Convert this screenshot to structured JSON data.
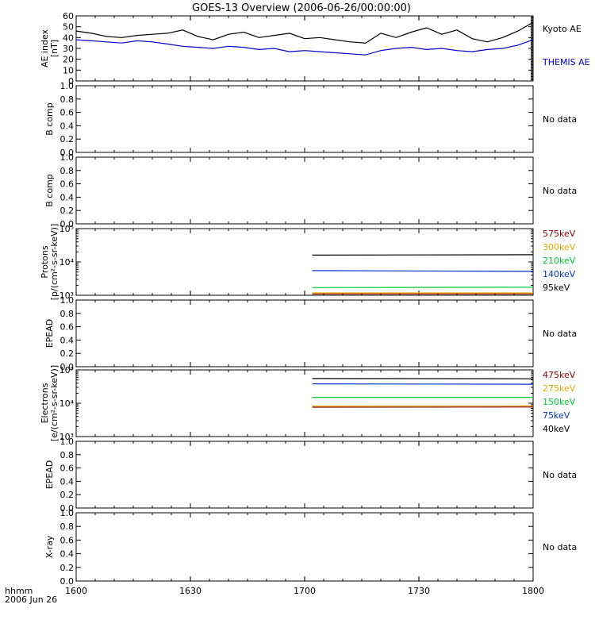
{
  "title": "GOES-13 Overview (2006-06-26/00:00:00)",
  "time_axis": {
    "label_line1": "hhmm",
    "label_line2": "2006 Jun 26",
    "ticks": [
      "1600",
      "1630",
      "1700",
      "1730",
      "1800"
    ]
  },
  "chart_data": [
    {
      "type": "line",
      "ylabel_line1": "AE index",
      "ylabel_line2": "[nT]",
      "ylim": [
        0,
        60
      ],
      "yticks": [
        "0",
        "10",
        "20",
        "30",
        "40",
        "50",
        "60"
      ],
      "series": [
        {
          "name": "Kyoto AE",
          "color": "#000000",
          "x": [
            0,
            4,
            8,
            12,
            16,
            20,
            24,
            28,
            32,
            36,
            40,
            44,
            48,
            52,
            56,
            60,
            64,
            68,
            72,
            76,
            80,
            84,
            88,
            92,
            96,
            100,
            104,
            108,
            112,
            116,
            120
          ],
          "y": [
            46,
            44,
            41,
            40,
            42,
            43,
            44,
            47,
            41,
            38,
            43,
            45,
            40,
            42,
            44,
            39,
            40,
            38,
            36,
            35,
            44,
            40,
            45,
            49,
            43,
            47,
            39,
            36,
            40,
            46,
            54
          ]
        },
        {
          "name": "THEMIS AE",
          "color": "#0000cc",
          "x": [
            0,
            4,
            8,
            12,
            16,
            20,
            24,
            28,
            32,
            36,
            40,
            44,
            48,
            52,
            56,
            60,
            64,
            68,
            72,
            76,
            80,
            84,
            88,
            92,
            96,
            100,
            104,
            108,
            112,
            116,
            120
          ],
          "y": [
            38,
            37,
            36,
            35,
            37,
            36,
            34,
            32,
            31,
            30,
            32,
            31,
            29,
            30,
            27,
            28,
            27,
            26,
            25,
            24,
            28,
            30,
            31,
            29,
            30,
            28,
            27,
            29,
            30,
            33,
            38
          ]
        }
      ],
      "side_label": ""
    },
    {
      "type": "line",
      "ylabel_line1": "B comp",
      "ylabel_line2": "",
      "ylim": [
        0,
        1
      ],
      "yticks": [
        "0.0",
        "0.2",
        "0.4",
        "0.6",
        "0.8",
        "1.0"
      ],
      "series": [],
      "side_label": "No data"
    },
    {
      "type": "line",
      "ylabel_line1": "B comp",
      "ylabel_line2": "",
      "ylim": [
        0,
        1
      ],
      "yticks": [
        "0.0",
        "0.2",
        "0.4",
        "0.6",
        "0.8",
        "1.0"
      ],
      "series": [],
      "side_label": "No data"
    },
    {
      "type": "line",
      "log": true,
      "ylabel_line1": "Protons",
      "ylabel_line2": "[p/(cm²-s-sr-keV)]",
      "ylim": [
        1000,
        100000
      ],
      "yticks": [
        "10³",
        "10⁴",
        "10⁵"
      ],
      "series": [
        {
          "name": "575keV",
          "color": "#8b0000",
          "x": [
            62,
            120
          ],
          "y": [
            1100,
            1100
          ]
        },
        {
          "name": "300keV",
          "color": "#e6a800",
          "x": [
            62,
            120
          ],
          "y": [
            1180,
            1180
          ]
        },
        {
          "name": "210keV",
          "color": "#00cc33",
          "x": [
            62,
            120
          ],
          "y": [
            1700,
            1750
          ]
        },
        {
          "name": "140keV",
          "color": "#0033cc",
          "x": [
            62,
            120
          ],
          "y": [
            5500,
            5200
          ]
        },
        {
          "name": "95keV",
          "color": "#000000",
          "x": [
            62,
            120
          ],
          "y": [
            16000,
            16500
          ]
        }
      ],
      "side_label": ""
    },
    {
      "type": "line",
      "ylabel_line1": "EPEAD",
      "ylabel_line2": "",
      "ylim": [
        0,
        1
      ],
      "yticks": [
        "0.0",
        "0.2",
        "0.4",
        "0.6",
        "0.8",
        "1.0"
      ],
      "series": [],
      "side_label": "No data"
    },
    {
      "type": "line",
      "log": true,
      "ylabel_line1": "Electrons",
      "ylabel_line2": "[e/(cm²-s-sr-keV)]",
      "ylim": [
        1000,
        100000
      ],
      "yticks": [
        "10³",
        "10⁴",
        "10⁵"
      ],
      "series": [
        {
          "name": "475keV",
          "color": "#8b0000",
          "x": [
            62,
            120
          ],
          "y": [
            7600,
            7700
          ]
        },
        {
          "name": "275keV",
          "color": "#e6a800",
          "x": [
            62,
            120
          ],
          "y": [
            8200,
            8300
          ]
        },
        {
          "name": "150keV",
          "color": "#00cc33",
          "x": [
            62,
            120
          ],
          "y": [
            15000,
            15000
          ]
        },
        {
          "name": "75keV",
          "color": "#0033cc",
          "x": [
            62,
            120
          ],
          "y": [
            38000,
            37000
          ]
        },
        {
          "name": "40keV",
          "color": "#000000",
          "x": [
            62,
            120
          ],
          "y": [
            55000,
            54000
          ]
        }
      ],
      "side_label": ""
    },
    {
      "type": "line",
      "ylabel_line1": "EPEAD",
      "ylabel_line2": "",
      "ylim": [
        0,
        1
      ],
      "yticks": [
        "0.0",
        "0.2",
        "0.4",
        "0.6",
        "0.8",
        "1.0"
      ],
      "series": [],
      "side_label": "No data"
    },
    {
      "type": "line",
      "ylabel_line1": "X-ray",
      "ylabel_line2": "",
      "ylim": [
        0,
        1
      ],
      "yticks": [
        "0.0",
        "0.2",
        "0.4",
        "0.6",
        "0.8",
        "1.0"
      ],
      "series": [],
      "side_label": "No data"
    }
  ]
}
